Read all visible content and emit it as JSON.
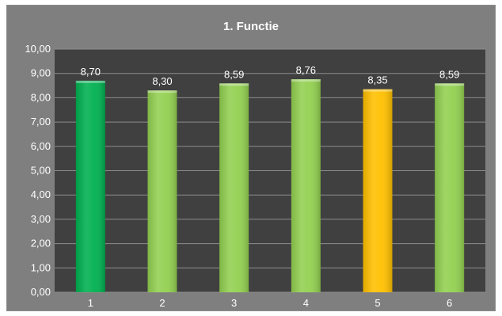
{
  "chart_data": {
    "type": "bar",
    "title": "1. Functie",
    "categories": [
      "1",
      "2",
      "3",
      "4",
      "5",
      "6"
    ],
    "values": [
      8.7,
      8.3,
      8.59,
      8.76,
      8.35,
      8.59
    ],
    "value_labels": [
      "8,70",
      "8,30",
      "8,59",
      "8,76",
      "8,35",
      "8,59"
    ],
    "bar_colors": [
      "#00b050",
      "#92d050",
      "#92d050",
      "#92d050",
      "#ffc000",
      "#92d050"
    ],
    "ylim": [
      0,
      10
    ],
    "yticks": [
      "0,00",
      "1,00",
      "2,00",
      "3,00",
      "4,00",
      "5,00",
      "6,00",
      "7,00",
      "8,00",
      "9,00",
      "10,00"
    ],
    "xlabel": "",
    "ylabel": "",
    "grid": true,
    "legend": "none",
    "colors": {
      "frame_background": "#7f7f7f",
      "plot_background": "#404040",
      "gridline": "#8c8c8c",
      "text": "#ffffff"
    }
  }
}
